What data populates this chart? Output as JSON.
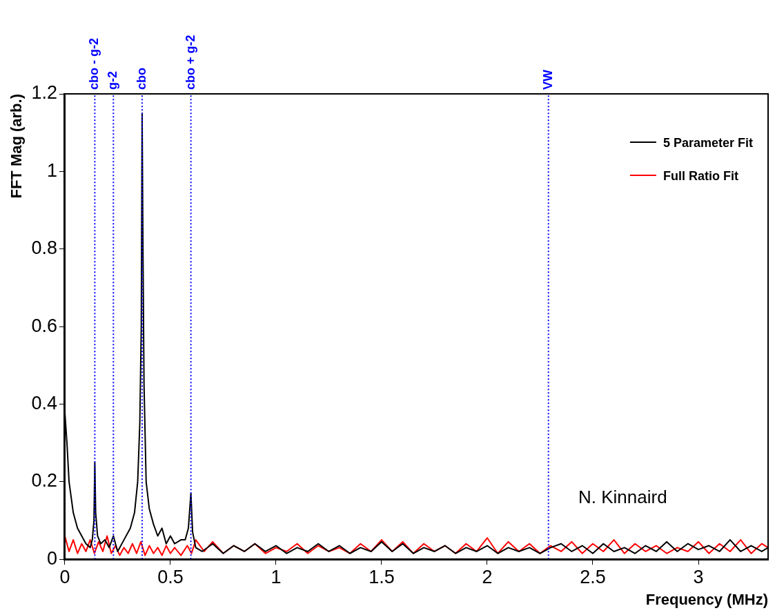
{
  "chart_data": {
    "type": "line",
    "xlabel": "Frequency (MHz)",
    "ylabel": "FFT Mag (arb.)",
    "xlim": [
      0,
      3.33
    ],
    "xticks": [
      0,
      0.5,
      1,
      1.5,
      2,
      2.5,
      3
    ],
    "ylim": [
      0,
      1.2
    ],
    "yticks": [
      0,
      0.2,
      0.4,
      0.6,
      0.8,
      1,
      1.2
    ],
    "grid": false,
    "legend": "top right",
    "marker": "none",
    "line_style": "solid",
    "series": [
      {
        "name": "5 Parameter Fit",
        "color": "#000000",
        "x": [
          0,
          0.01,
          0.02,
          0.04,
          0.06,
          0.08,
          0.1,
          0.12,
          0.13,
          0.138,
          0.142,
          0.146,
          0.155,
          0.17,
          0.19,
          0.21,
          0.23,
          0.25,
          0.28,
          0.31,
          0.33,
          0.345,
          0.355,
          0.362,
          0.366,
          0.37,
          0.375,
          0.385,
          0.4,
          0.42,
          0.44,
          0.46,
          0.48,
          0.5,
          0.52,
          0.55,
          0.57,
          0.585,
          0.597,
          0.605,
          0.62,
          0.65,
          0.7,
          0.75,
          0.8,
          0.85,
          0.9,
          0.95,
          1.0,
          1.05,
          1.1,
          1.15,
          1.2,
          1.25,
          1.3,
          1.35,
          1.4,
          1.45,
          1.5,
          1.55,
          1.6,
          1.65,
          1.7,
          1.75,
          1.8,
          1.85,
          1.9,
          1.95,
          2.0,
          2.05,
          2.1,
          2.15,
          2.2,
          2.25,
          2.3,
          2.35,
          2.4,
          2.45,
          2.5,
          2.55,
          2.6,
          2.65,
          2.7,
          2.75,
          2.8,
          2.85,
          2.9,
          2.95,
          3.0,
          3.05,
          3.1,
          3.15,
          3.2,
          3.25,
          3.3,
          3.33
        ],
        "values": [
          0.38,
          0.3,
          0.2,
          0.12,
          0.08,
          0.06,
          0.04,
          0.03,
          0.05,
          0.1,
          0.25,
          0.12,
          0.06,
          0.04,
          0.05,
          0.03,
          0.06,
          0.02,
          0.05,
          0.08,
          0.12,
          0.2,
          0.35,
          0.6,
          1.15,
          0.8,
          0.45,
          0.2,
          0.13,
          0.09,
          0.06,
          0.08,
          0.04,
          0.06,
          0.04,
          0.05,
          0.05,
          0.08,
          0.17,
          0.07,
          0.03,
          0.02,
          0.04,
          0.015,
          0.035,
          0.02,
          0.04,
          0.02,
          0.035,
          0.015,
          0.03,
          0.02,
          0.04,
          0.02,
          0.035,
          0.015,
          0.03,
          0.02,
          0.045,
          0.02,
          0.04,
          0.015,
          0.03,
          0.02,
          0.035,
          0.015,
          0.03,
          0.02,
          0.035,
          0.015,
          0.03,
          0.02,
          0.03,
          0.015,
          0.03,
          0.04,
          0.02,
          0.035,
          0.015,
          0.04,
          0.02,
          0.03,
          0.015,
          0.035,
          0.02,
          0.045,
          0.02,
          0.04,
          0.025,
          0.035,
          0.02,
          0.05,
          0.02,
          0.035,
          0.02,
          0.03
        ]
      },
      {
        "name": "Full Ratio Fit",
        "color": "#ff0000",
        "x": [
          0,
          0.02,
          0.04,
          0.06,
          0.08,
          0.1,
          0.12,
          0.14,
          0.16,
          0.18,
          0.2,
          0.22,
          0.24,
          0.26,
          0.28,
          0.3,
          0.32,
          0.34,
          0.36,
          0.38,
          0.4,
          0.42,
          0.44,
          0.46,
          0.48,
          0.5,
          0.52,
          0.55,
          0.58,
          0.6,
          0.62,
          0.66,
          0.7,
          0.75,
          0.8,
          0.85,
          0.9,
          0.95,
          1.0,
          1.05,
          1.1,
          1.15,
          1.2,
          1.25,
          1.3,
          1.35,
          1.4,
          1.45,
          1.5,
          1.55,
          1.6,
          1.65,
          1.7,
          1.75,
          1.8,
          1.85,
          1.9,
          1.95,
          2.0,
          2.05,
          2.1,
          2.15,
          2.2,
          2.25,
          2.3,
          2.35,
          2.4,
          2.45,
          2.5,
          2.55,
          2.6,
          2.65,
          2.7,
          2.75,
          2.8,
          2.85,
          2.9,
          2.95,
          3.0,
          3.05,
          3.1,
          3.15,
          3.2,
          3.25,
          3.3,
          3.33
        ],
        "values": [
          0.06,
          0.02,
          0.05,
          0.015,
          0.04,
          0.02,
          0.05,
          0.015,
          0.045,
          0.02,
          0.06,
          0.015,
          0.035,
          0.01,
          0.03,
          0.015,
          0.04,
          0.015,
          0.045,
          0.01,
          0.035,
          0.015,
          0.03,
          0.01,
          0.035,
          0.015,
          0.03,
          0.01,
          0.035,
          0.015,
          0.05,
          0.02,
          0.045,
          0.015,
          0.035,
          0.02,
          0.04,
          0.015,
          0.03,
          0.02,
          0.04,
          0.015,
          0.035,
          0.02,
          0.03,
          0.015,
          0.04,
          0.02,
          0.05,
          0.02,
          0.045,
          0.015,
          0.04,
          0.02,
          0.035,
          0.015,
          0.04,
          0.02,
          0.055,
          0.015,
          0.045,
          0.02,
          0.04,
          0.015,
          0.035,
          0.02,
          0.045,
          0.015,
          0.04,
          0.02,
          0.05,
          0.015,
          0.04,
          0.02,
          0.035,
          0.015,
          0.03,
          0.02,
          0.045,
          0.015,
          0.04,
          0.02,
          0.05,
          0.015,
          0.04,
          0.03
        ]
      }
    ],
    "ref_lines": [
      {
        "axis": "x",
        "value": 0.142,
        "label": "cbo - g-2",
        "color": "#0000ff",
        "line_style": "dotted"
      },
      {
        "axis": "x",
        "value": 0.23,
        "label": "g-2",
        "color": "#0000ff",
        "line_style": "dotted"
      },
      {
        "axis": "x",
        "value": 0.366,
        "label": "cbo",
        "color": "#0000ff",
        "line_style": "dotted"
      },
      {
        "axis": "x",
        "value": 0.597,
        "label": "cbo + g-2",
        "color": "#0000ff",
        "line_style": "dotted"
      },
      {
        "axis": "x",
        "value": 2.29,
        "label": "VW",
        "color": "#0000ff",
        "line_style": "dotted"
      }
    ],
    "annotations": [
      "N. Kinnaird"
    ]
  }
}
